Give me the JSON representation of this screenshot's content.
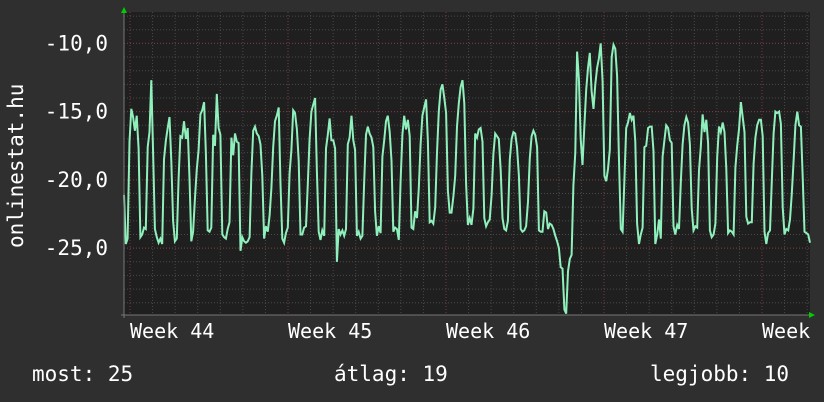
{
  "chart_data": {
    "type": "line",
    "title": "",
    "ylabel": "onlinestat.hu",
    "xlabel": "",
    "x_ticks": [
      "Week 44",
      "Week 45",
      "Week 46",
      "Week 47",
      "Week"
    ],
    "y_ticks": [
      "-10,0",
      "-15,0",
      "-20,0",
      "-25,0"
    ],
    "y_tick_values": [
      -10,
      -15,
      -20,
      -25
    ],
    "ylim": [
      -29.9,
      -7.7
    ],
    "grid": true,
    "line_color": "#8ff0bc",
    "series": [
      {
        "values": [
          -21.1,
          -24.7,
          -24.3,
          -17.2,
          -14.8,
          -15.4,
          -16.4,
          -15.3,
          -17.7,
          -24.2,
          -24.0,
          -23.5,
          -23.6,
          -17.6,
          -16.5,
          -12.7,
          -18.0,
          -23.6,
          -24.2,
          -24.6,
          -24.3,
          -24.7,
          -18.5,
          -17.1,
          -16.2,
          -15.4,
          -18.6,
          -23.0,
          -24.5,
          -24.3,
          -19.9,
          -16.8,
          -16.9,
          -15.7,
          -17.0,
          -16.2,
          -19.9,
          -24.5,
          -23.8,
          -21.3,
          -19.2,
          -17.8,
          -15.2,
          -14.9,
          -14.3,
          -18.1,
          -23.7,
          -23.8,
          -23.5,
          -16.7,
          -17.5,
          -13.7,
          -16.2,
          -16.7,
          -24.0,
          -24.2,
          -24.3,
          -23.6,
          -23.1,
          -16.9,
          -18.2,
          -16.6,
          -17.2,
          -17.3,
          -25.2,
          -24.2,
          -24.5,
          -24.6,
          -24.5,
          -24.2,
          -19.5,
          -16.4,
          -16.1,
          -16.6,
          -16.8,
          -17.4,
          -19.7,
          -24.3,
          -23.4,
          -23.8,
          -22.6,
          -20.6,
          -17.6,
          -15.7,
          -15.3,
          -14.7,
          -20.3,
          -24.3,
          -24.6,
          -23.9,
          -23.5,
          -19.5,
          -17.8,
          -14.9,
          -15.1,
          -16.3,
          -18.6,
          -24.0,
          -24.0,
          -23.5,
          -23.4,
          -20.3,
          -17.0,
          -15.0,
          -14.5,
          -14.0,
          -19.4,
          -23.8,
          -24.4,
          -23.7,
          -24.1,
          -17.7,
          -16.7,
          -15.5,
          -17.1,
          -17.1,
          -17.7,
          -26.0,
          -23.6,
          -24.0,
          -23.7,
          -24.1,
          -23.6,
          -17.4,
          -16.9,
          -15.3,
          -17.1,
          -17.8,
          -24.1,
          -23.8,
          -24.3,
          -24.1,
          -20.1,
          -16.7,
          -16.1,
          -16.6,
          -16.9,
          -17.6,
          -22.3,
          -24.1,
          -23.4,
          -23.9,
          -18.3,
          -17.1,
          -15.7,
          -15.3,
          -16.5,
          -18.6,
          -23.8,
          -23.5,
          -23.6,
          -24.4,
          -20.1,
          -16.7,
          -15.3,
          -16.3,
          -15.6,
          -16.8,
          -23.5,
          -23.6,
          -22.3,
          -22.8,
          -20.6,
          -17.4,
          -15.3,
          -14.7,
          -14.1,
          -17.2,
          -23.1,
          -23.0,
          -23.2,
          -22.0,
          -18.0,
          -15.0,
          -13.4,
          -13.0,
          -14.0,
          -15.1,
          -20.8,
          -22.4,
          -22.4,
          -21.2,
          -19.7,
          -16.1,
          -14.4,
          -13.2,
          -12.7,
          -14.4,
          -20.3,
          -23.3,
          -22.8,
          -23.3,
          -22.1,
          -16.6,
          -16.9,
          -16.3,
          -16.2,
          -17.2,
          -22.8,
          -23.4,
          -23.1,
          -22.9,
          -21.1,
          -18.1,
          -16.6,
          -16.8,
          -17.0,
          -19.3,
          -22.8,
          -23.6,
          -23.7,
          -23.0,
          -18.5,
          -17.0,
          -16.5,
          -16.6,
          -17.6,
          -19.7,
          -23.6,
          -23.8,
          -23.7,
          -23.4,
          -21.6,
          -18.4,
          -16.8,
          -16.4,
          -16.7,
          -17.6,
          -23.7,
          -23.8,
          -23.8,
          -22.3,
          -22.4,
          -23.6,
          -23.2,
          -23.3,
          -23.6,
          -24.1,
          -24.5,
          -25.0,
          -26.4,
          -26.5,
          -29.5,
          -29.8,
          -26.7,
          -25.8,
          -25.5,
          -20.4,
          -18.0,
          -10.6,
          -12.6,
          -17.0,
          -18.9,
          -16.0,
          -13.4,
          -11.8,
          -10.7,
          -13.5,
          -14.8,
          -13.0,
          -11.8,
          -11.1,
          -10.0,
          -12.8,
          -19.7,
          -20.1,
          -19.2,
          -17.8,
          -11.0,
          -10.1,
          -10.4,
          -12.4,
          -18.3,
          -23.6,
          -23.8,
          -20.0,
          -16.2,
          -15.8,
          -15.1,
          -15.6,
          -15.3,
          -17.2,
          -23.2,
          -24.7,
          -24.0,
          -23.5,
          -17.6,
          -17.5,
          -16.2,
          -16.1,
          -16.1,
          -17.9,
          -24.7,
          -24.0,
          -22.9,
          -24.3,
          -18.3,
          -17.1,
          -16.0,
          -16.2,
          -17.1,
          -17.3,
          -23.4,
          -24.0,
          -23.3,
          -23.6,
          -20.2,
          -17.4,
          -16.0,
          -15.4,
          -15.8,
          -17.4,
          -22.1,
          -23.7,
          -23.4,
          -23.5,
          -19.3,
          -17.6,
          -15.2,
          -16.5,
          -15.6,
          -17.3,
          -23.7,
          -24.2,
          -24.0,
          -23.2,
          -18.3,
          -16.1,
          -16.5,
          -15.8,
          -16.5,
          -19.2,
          -23.9,
          -23.7,
          -23.8,
          -24.0,
          -19.1,
          -17.5,
          -16.3,
          -14.3,
          -15.4,
          -16.5,
          -22.7,
          -23.2,
          -23.1,
          -23.1,
          -18.8,
          -16.9,
          -16.0,
          -15.6,
          -15.6,
          -16.8,
          -23.8,
          -24.7,
          -23.9,
          -23.7,
          -20.1,
          -16.6,
          -15.0,
          -15.1,
          -15.0,
          -15.9,
          -22.0,
          -24.0,
          -23.6,
          -23.7,
          -22.9,
          -21.0,
          -18.6,
          -16.0,
          -15.0,
          -16.0,
          -16.1,
          -19.8,
          -23.8,
          -23.9,
          -24.0,
          -24.6
        ]
      }
    ]
  },
  "footer": {
    "current": "most: 25",
    "average": "átlag: 19",
    "best": "legjobb: 10"
  }
}
